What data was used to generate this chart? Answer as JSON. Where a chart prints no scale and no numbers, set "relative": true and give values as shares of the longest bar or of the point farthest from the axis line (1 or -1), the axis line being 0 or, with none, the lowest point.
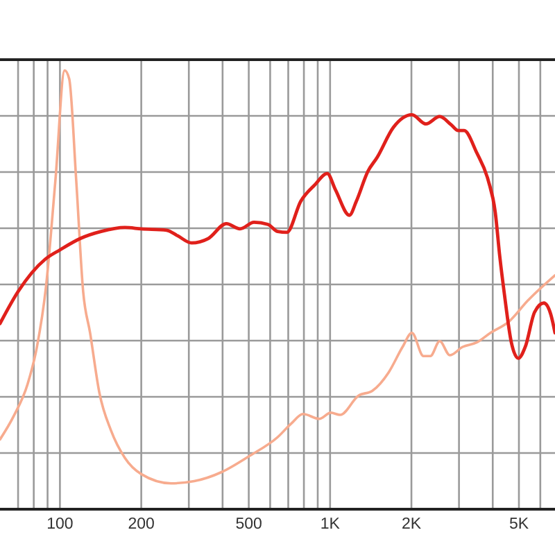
{
  "chart_data": {
    "type": "line",
    "relative": true,
    "log": "x",
    "grid": true,
    "xlim": [
      60,
      6800
    ],
    "xticks": [
      {
        "value": 70,
        "label": null
      },
      {
        "value": 80,
        "label": null
      },
      {
        "value": 90,
        "label": null
      },
      100,
      200,
      {
        "value": 300,
        "label": null
      },
      {
        "value": 400,
        "label": null
      },
      500,
      {
        "value": 600,
        "label": null
      },
      {
        "value": 700,
        "label": null
      },
      {
        "value": 800,
        "label": null
      },
      {
        "value": 900,
        "label": null
      },
      {
        "value": 1000,
        "label": "1K"
      },
      {
        "value": 2000,
        "label": "2K"
      },
      {
        "value": 3000,
        "label": null
      },
      {
        "value": 4000,
        "label": null
      },
      {
        "value": 5000,
        "label": "5K"
      },
      {
        "value": 6000,
        "label": null
      }
    ],
    "series": [
      {
        "color": "#f7ab8e",
        "x": [
          60,
          67.4,
          75.9,
          82.2,
          88.8,
          96.2,
          104.1,
          108.2,
          114.9,
          121.9,
          129.3,
          140,
          154.4,
          173.9,
          200,
          258,
          314,
          398,
          505,
          639,
          720,
          794,
          912,
          1006,
          1089,
          1275,
          1435,
          1648,
          1855,
          2008,
          2216,
          2351,
          2545,
          2775,
          3097,
          3486,
          3925,
          4599,
          5385,
          6800
        ],
        "values": [
          0.159,
          0.212,
          0.285,
          0.37,
          0.507,
          0.749,
          1,
          0.981,
          0.749,
          0.496,
          0.402,
          0.265,
          0.18,
          0.117,
          0.08,
          0.059,
          0.064,
          0.085,
          0.122,
          0.164,
          0.196,
          0.217,
          0.206,
          0.22,
          0.215,
          0.259,
          0.27,
          0.312,
          0.37,
          0.402,
          0.349,
          0.349,
          0.383,
          0.351,
          0.37,
          0.38,
          0.402,
          0.428,
          0.475,
          0.533
        ]
      },
      {
        "color": "#e0201b",
        "x": [
          60,
          70,
          88.3,
          100,
          119,
          142,
          174,
          200,
          248,
          273,
          307,
          354,
          413,
          464,
          523,
          589,
          639,
          692,
          779,
          877,
          976,
          1047,
          1179,
          1251,
          1380,
          1494,
          1714,
          2008,
          2261,
          2545,
          2808,
          2979,
          3134,
          3486,
          3851,
          4086,
          4249,
          4418,
          4688,
          4974,
          5278,
          5713,
          6184,
          6561,
          6800
        ],
        "values": [
          0.423,
          0.496,
          0.57,
          0.591,
          0.617,
          0.633,
          0.642,
          0.639,
          0.636,
          0.623,
          0.607,
          0.617,
          0.651,
          0.639,
          0.654,
          0.649,
          0.633,
          0.631,
          0.702,
          0.739,
          0.765,
          0.728,
          0.67,
          0.702,
          0.77,
          0.802,
          0.87,
          0.899,
          0.878,
          0.895,
          0.876,
          0.863,
          0.863,
          0.813,
          0.749,
          0.677,
          0.575,
          0.49,
          0.38,
          0.344,
          0.37,
          0.449,
          0.47,
          0.444,
          0.402
        ]
      }
    ]
  }
}
